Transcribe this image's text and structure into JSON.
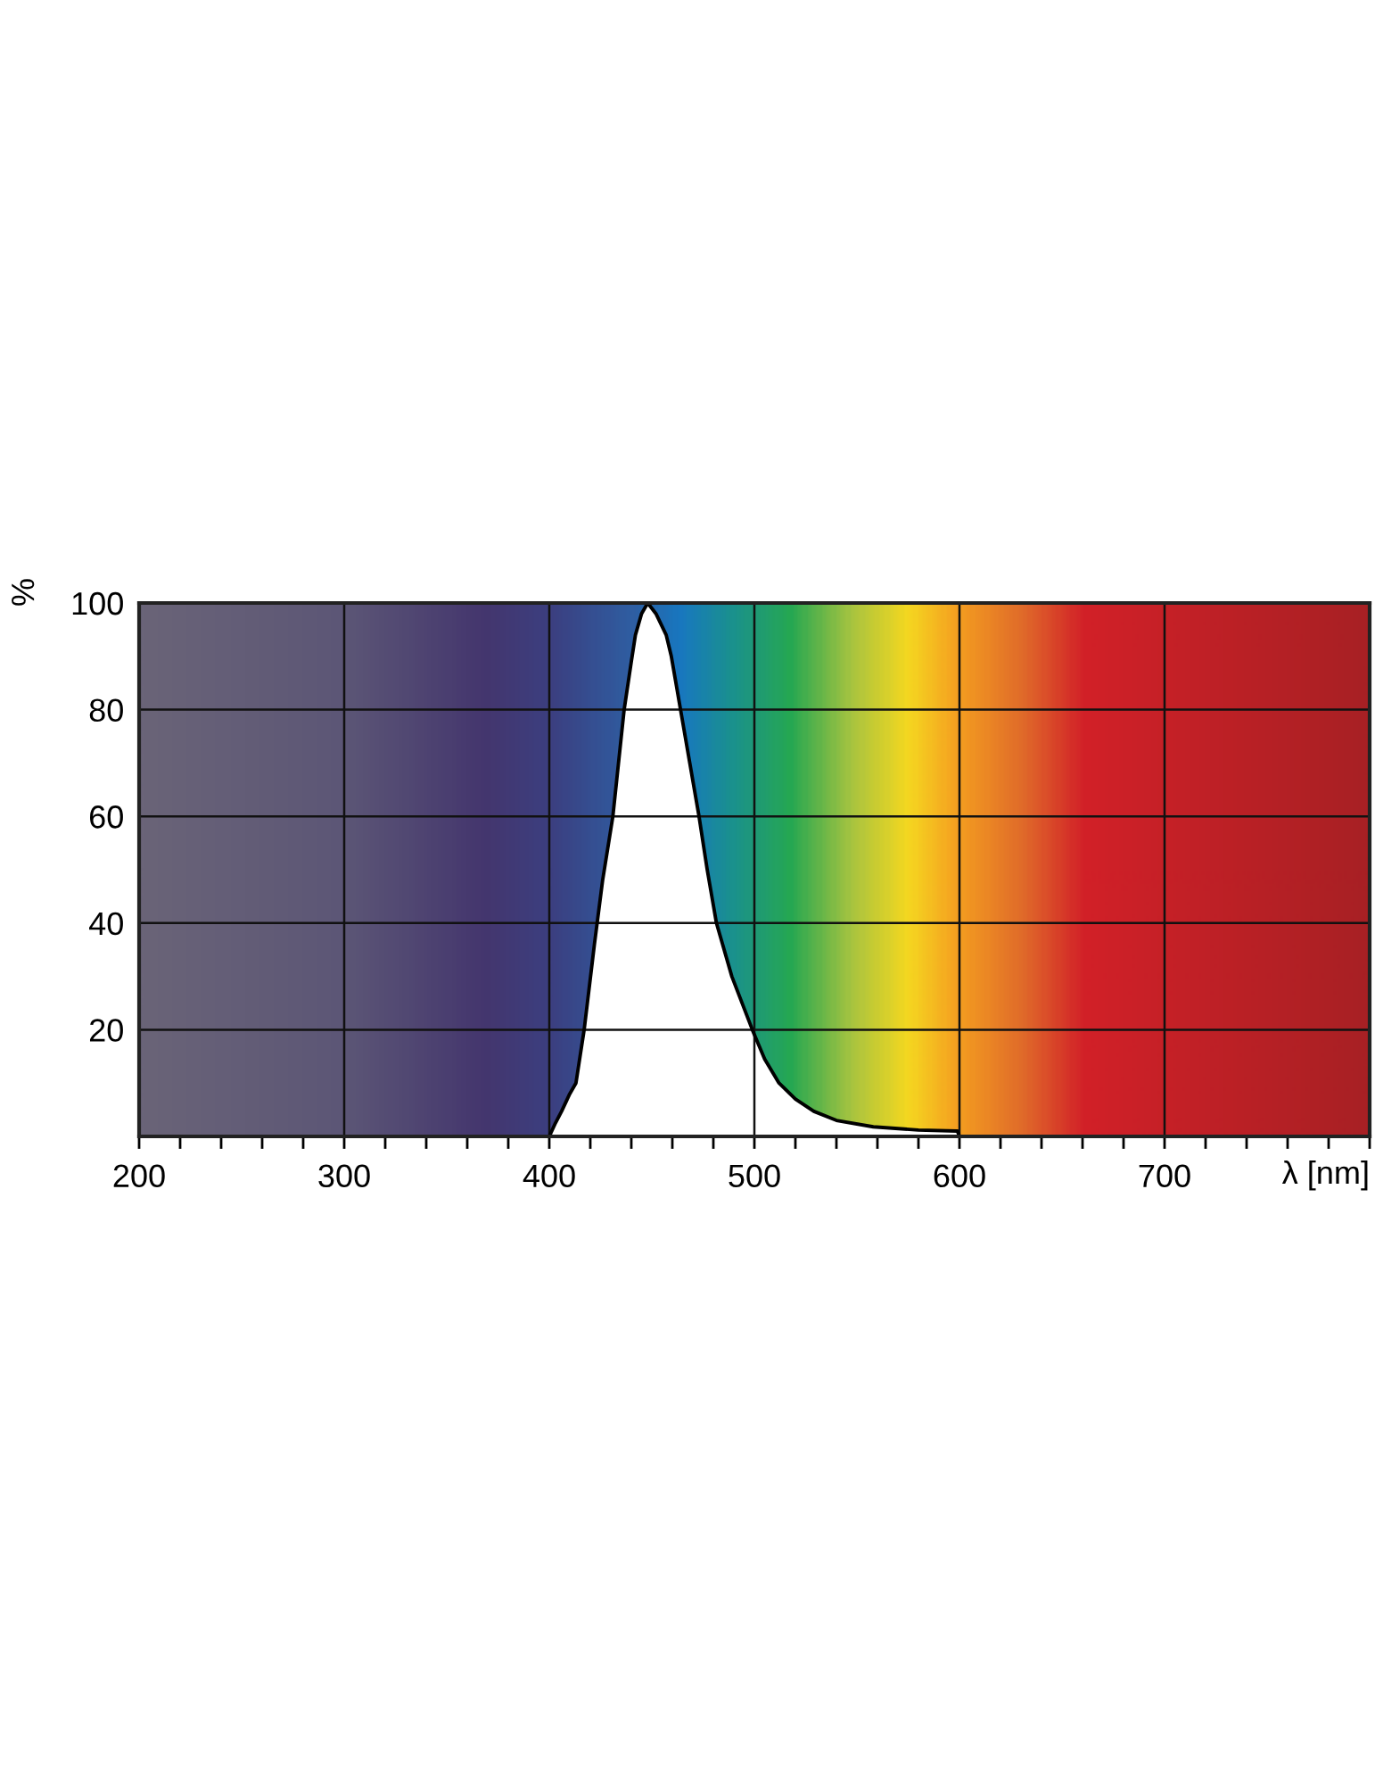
{
  "chart_data": {
    "type": "area",
    "ylabel": "%",
    "xlabel": "λ [nm]",
    "x": [
      400,
      403,
      406,
      410,
      413,
      417,
      422,
      426,
      431,
      436.5,
      440,
      442,
      445,
      448,
      452,
      457,
      459.5,
      464,
      468.5,
      473,
      477,
      481.5,
      489,
      499,
      505,
      512,
      520,
      529,
      540,
      558,
      580,
      599,
      600
    ],
    "series": [
      {
        "color": "#ffffff",
        "values": [
          0,
          2.5,
          4.7,
          8,
          10,
          20,
          36,
          48,
          60,
          80,
          89,
          94,
          98,
          100,
          98,
          94,
          90,
          80,
          70,
          60,
          50,
          40,
          30,
          20,
          14.5,
          10,
          7,
          4.7,
          3,
          1.8,
          1.2,
          1.0,
          0
        ]
      }
    ],
    "xlim": [
      200,
      800
    ],
    "ylim": [
      0,
      100
    ],
    "xticks": [
      200,
      {
        "value": 220,
        "label": null
      },
      {
        "value": 240,
        "label": null
      },
      {
        "value": 260,
        "label": null
      },
      {
        "value": 280,
        "label": null
      },
      300,
      {
        "value": 320,
        "label": null
      },
      {
        "value": 340,
        "label": null
      },
      {
        "value": 360,
        "label": null
      },
      {
        "value": 380,
        "label": null
      },
      400,
      {
        "value": 420,
        "label": null
      },
      {
        "value": 440,
        "label": null
      },
      {
        "value": 460,
        "label": null
      },
      {
        "value": 480,
        "label": null
      },
      500,
      {
        "value": 520,
        "label": null
      },
      {
        "value": 540,
        "label": null
      },
      {
        "value": 560,
        "label": null
      },
      {
        "value": 580,
        "label": null
      },
      600,
      {
        "value": 620,
        "label": null
      },
      {
        "value": 640,
        "label": null
      },
      {
        "value": 660,
        "label": null
      },
      {
        "value": 680,
        "label": null
      },
      700,
      {
        "value": 720,
        "label": null
      },
      {
        "value": 740,
        "label": null
      },
      {
        "value": 760,
        "label": null
      },
      {
        "value": 780,
        "label": null
      },
      {
        "value": 800,
        "label": null
      }
    ],
    "yticks": [
      20,
      40,
      60,
      80,
      100
    ],
    "grid": true
  }
}
